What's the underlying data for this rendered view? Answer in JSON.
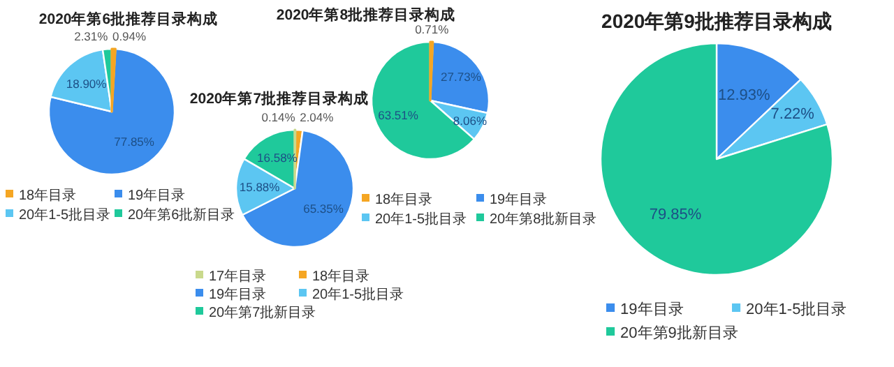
{
  "chart_data": [
    {
      "type": "pie",
      "title": "2020年第6批推荐目录构成",
      "categories": [
        "18年目录",
        "19年目录",
        "20年1-5批目录",
        "20年第6批新目录"
      ],
      "values": [
        0.94,
        77.85,
        18.9,
        2.31
      ],
      "value_labels": [
        "0.94%",
        "77.85%",
        "18.90%",
        "2.31%"
      ],
      "colors": [
        "#f5a623",
        "#3b8ded",
        "#5cc6f2",
        "#1fc99b"
      ],
      "legend": "bottom"
    },
    {
      "type": "pie",
      "title": "2020年第7批推荐目录构成",
      "categories": [
        "17年目录",
        "18年目录",
        "19年目录",
        "20年1-5批目录",
        "20年第7批新目录"
      ],
      "values": [
        0.14,
        2.04,
        65.35,
        15.88,
        16.58
      ],
      "value_labels": [
        "0.14%",
        "2.04%",
        "65.35%",
        "15.88%",
        "16.58%"
      ],
      "colors": [
        "#c9d98c",
        "#f5a623",
        "#3b8ded",
        "#5cc6f2",
        "#1fc99b"
      ],
      "legend": "bottom"
    },
    {
      "type": "pie",
      "title": "2020年第8批推荐目录构成",
      "categories": [
        "18年目录",
        "19年目录",
        "20年1-5批目录",
        "20年第8批新目录"
      ],
      "values": [
        0.71,
        27.73,
        8.06,
        63.51
      ],
      "value_labels": [
        "0.71%",
        "27.73%",
        "8.06%",
        "63.51%"
      ],
      "colors": [
        "#f5a623",
        "#3b8ded",
        "#5cc6f2",
        "#1fc99b"
      ],
      "legend": "bottom"
    },
    {
      "type": "pie",
      "title": "2020年第9批推荐目录构成",
      "categories": [
        "19年目录",
        "20年1-5批目录",
        "20年第9批新目录"
      ],
      "values": [
        12.93,
        7.22,
        79.85
      ],
      "value_labels": [
        "12.93%",
        "7.22%",
        "79.85%"
      ],
      "colors": [
        "#3b8ded",
        "#5cc6f2",
        "#1fc99b"
      ],
      "legend": "bottom"
    }
  ]
}
